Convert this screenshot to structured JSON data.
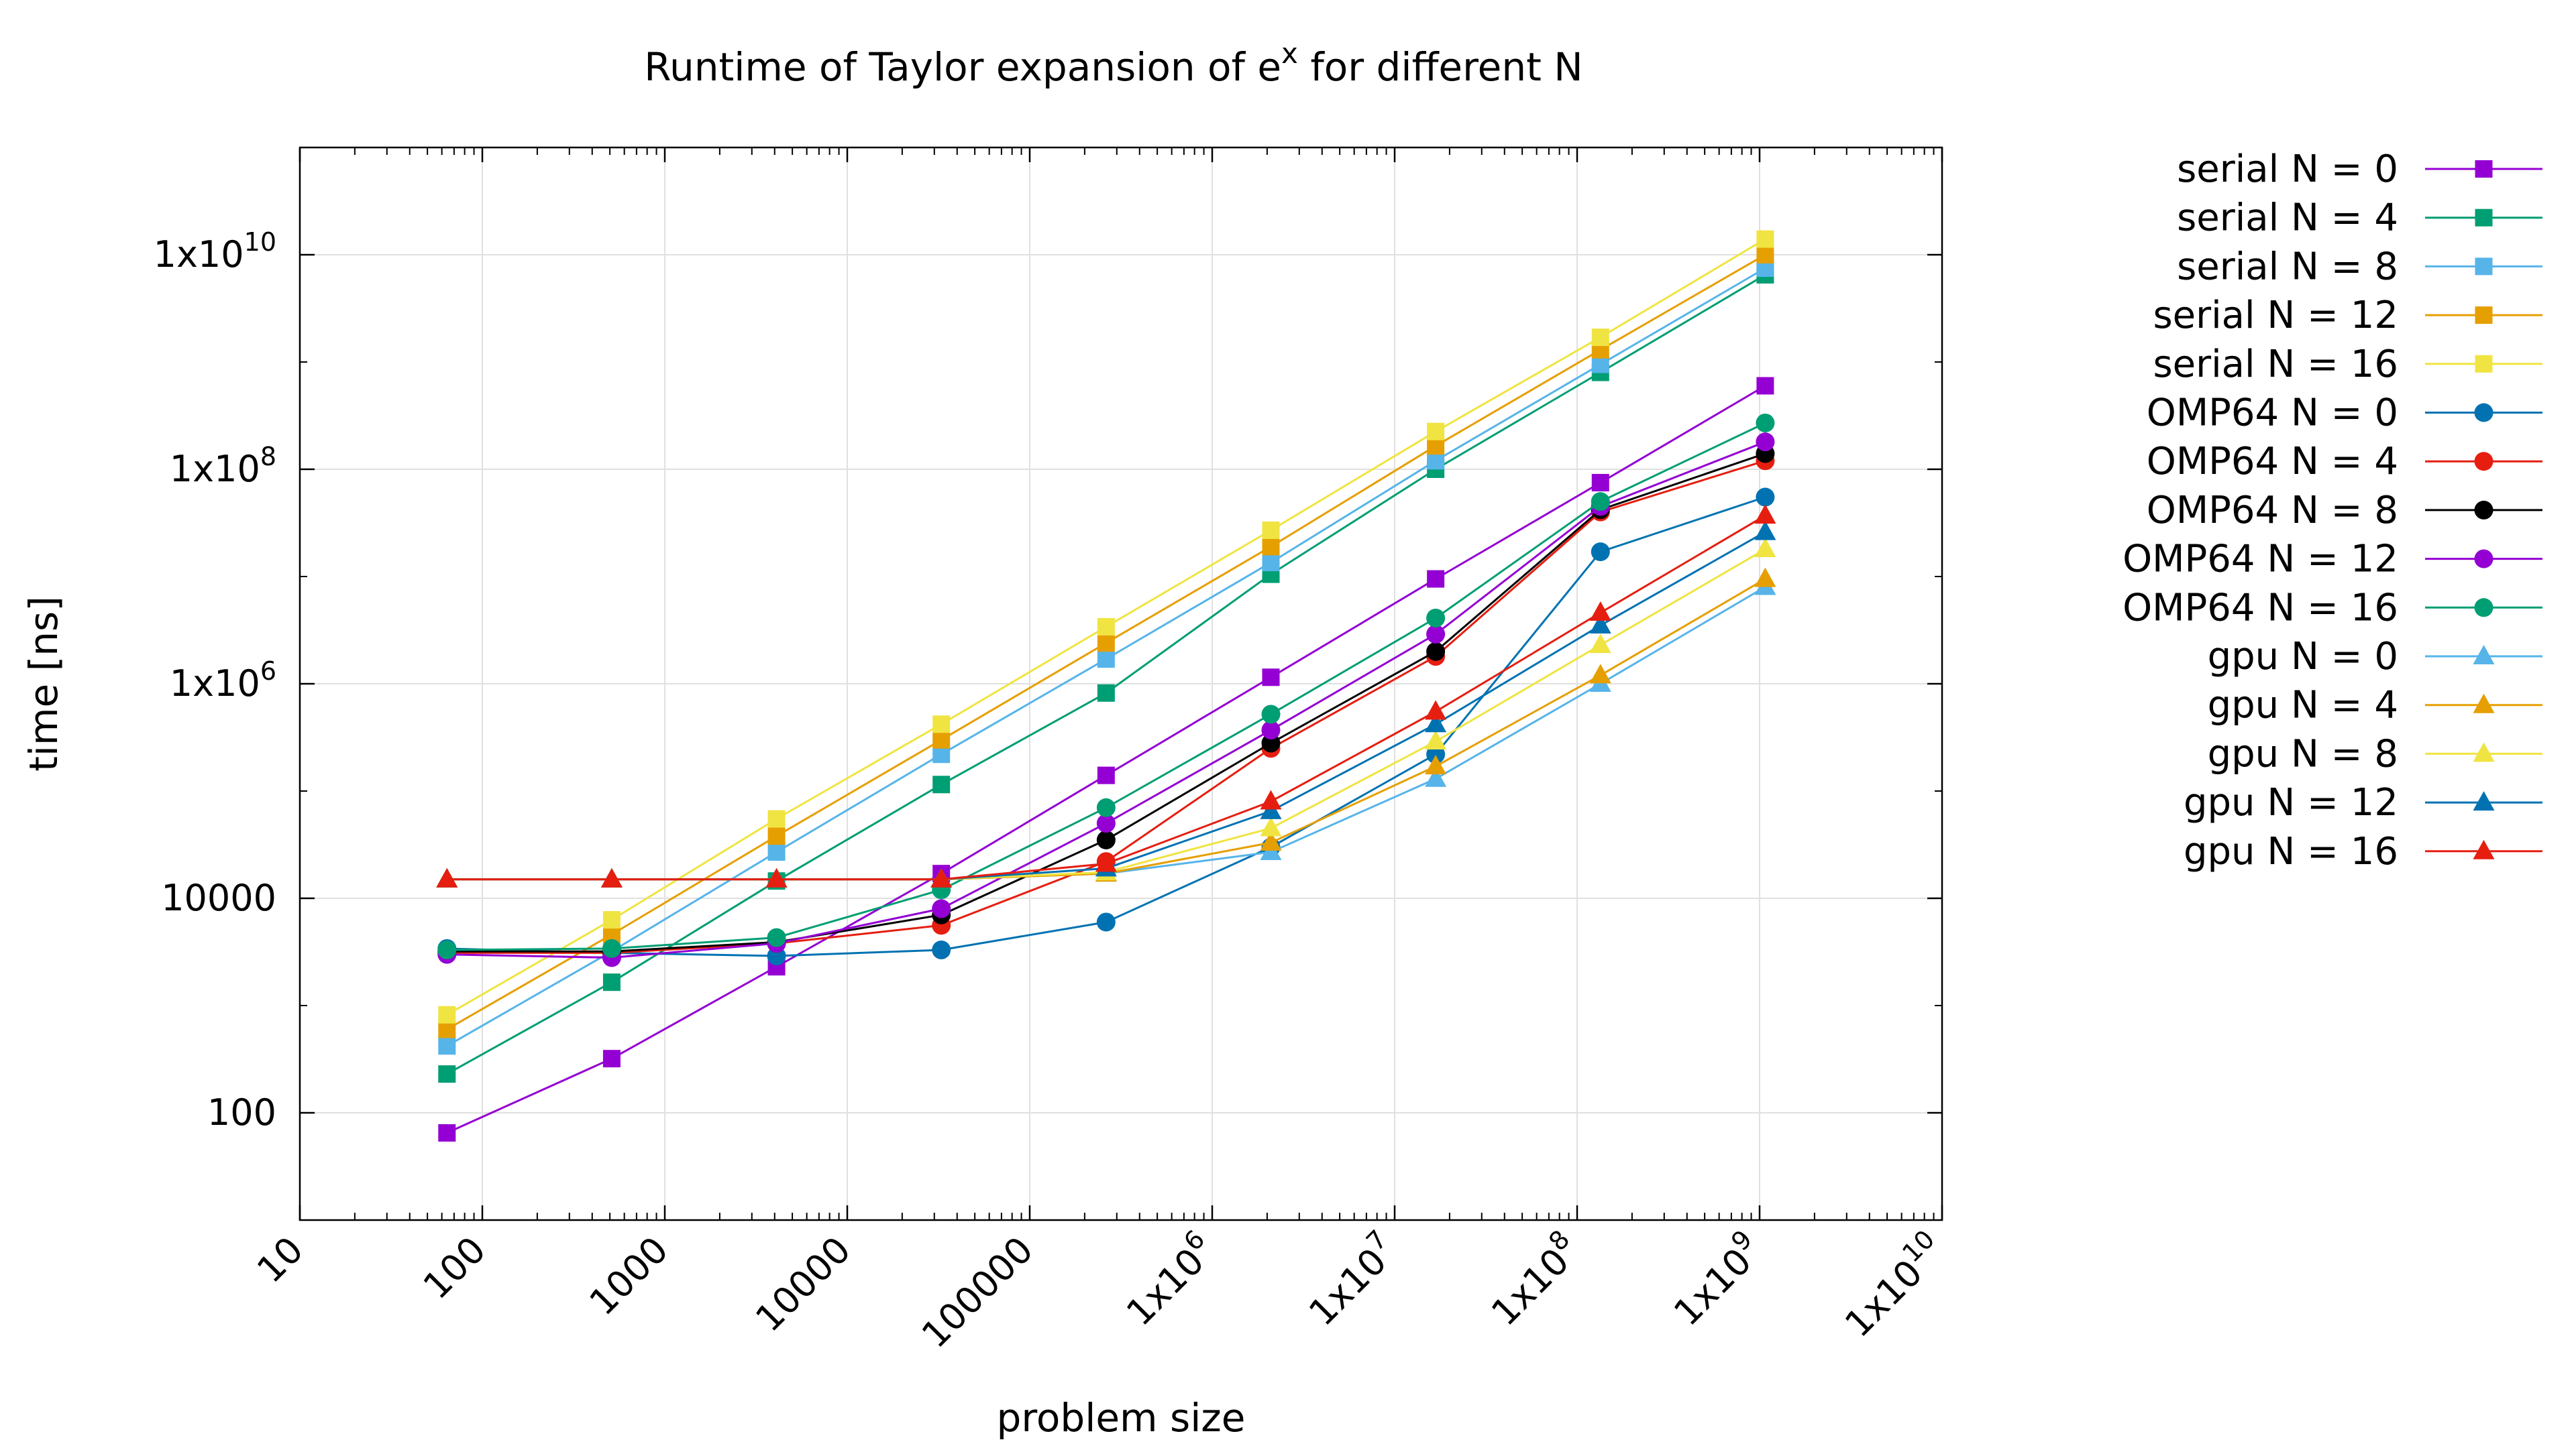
{
  "chart_data": {
    "type": "line",
    "title": "Runtime of Taylor expansion of e^x for different N",
    "title_parts": {
      "prefix": "Runtime of Taylor expansion of e",
      "sup": "x",
      "suffix": " for different N"
    },
    "xlabel": "problem size",
    "ylabel": "time [ns]",
    "x_scale": "log",
    "y_scale": "log",
    "xlim": [
      10,
      10000000000
    ],
    "ylim": [
      10,
      100000000000
    ],
    "grid": true,
    "legend_position": "outside-right",
    "x_ticks": [
      {
        "v": 10,
        "label": "10"
      },
      {
        "v": 100,
        "label": "100"
      },
      {
        "v": 1000,
        "label": "1000"
      },
      {
        "v": 10000,
        "label": "10000"
      },
      {
        "v": 100000,
        "label": "100000"
      },
      {
        "v": 1000000,
        "label": "1x10",
        "exp": "6"
      },
      {
        "v": 10000000,
        "label": "1x10",
        "exp": "7"
      },
      {
        "v": 100000000,
        "label": "1x10",
        "exp": "8"
      },
      {
        "v": 1000000000,
        "label": "1x10",
        "exp": "9"
      },
      {
        "v": 10000000000,
        "label": "1x10",
        "exp": "10"
      }
    ],
    "y_ticks": [
      {
        "v": 100,
        "label": "100"
      },
      {
        "v": 10000,
        "label": "10000"
      },
      {
        "v": 1000000,
        "label": "1x10",
        "exp": "6"
      },
      {
        "v": 100000000,
        "label": "1x10",
        "exp": "8"
      },
      {
        "v": 10000000000,
        "label": "1x10",
        "exp": "10"
      }
    ],
    "x": [
      64,
      512,
      4096,
      32768,
      262144,
      2097152,
      16777216,
      134217728,
      1073741824
    ],
    "series": [
      {
        "name": "serial N = 0",
        "color": "#9400d3",
        "marker": "square",
        "values": [
          65,
          320,
          2300,
          17000,
          140000,
          1150000,
          9500000,
          75000000,
          600000000
        ]
      },
      {
        "name": "serial N = 4",
        "color": "#009e73",
        "marker": "square",
        "values": [
          230,
          1650,
          14500,
          115000,
          820000,
          10500000,
          100000000,
          800000000,
          6500000000
        ]
      },
      {
        "name": "serial N = 8",
        "color": "#56b4e9",
        "marker": "square",
        "values": [
          420,
          3200,
          27000,
          220000,
          1700000,
          13500000,
          120000000,
          950000000,
          7500000000
        ]
      },
      {
        "name": "serial N = 12",
        "color": "#e69f00",
        "marker": "square",
        "values": [
          600,
          4600,
          38000,
          300000,
          2400000,
          19000000,
          165000000,
          1300000000,
          10000000000
        ]
      },
      {
        "name": "serial N = 16",
        "color": "#f0e442",
        "marker": "square",
        "values": [
          820,
          6300,
          55000,
          420000,
          3400000,
          27000000,
          225000000,
          1700000000,
          14000000000
        ]
      },
      {
        "name": "OMP64 N = 0",
        "color": "#0072b2",
        "marker": "circle",
        "values": [
          3400,
          3100,
          2900,
          3300,
          6000,
          30000,
          220000,
          17000000,
          55000000
        ]
      },
      {
        "name": "OMP64 N = 4",
        "color": "#e51e10",
        "marker": "circle",
        "values": [
          3100,
          3100,
          3800,
          5600,
          22000,
          250000,
          1800000,
          40000000,
          120000000
        ]
      },
      {
        "name": "OMP64 N = 8",
        "color": "#000000",
        "marker": "circle",
        "values": [
          3200,
          3200,
          3900,
          7000,
          35000,
          280000,
          2000000,
          42000000,
          140000000
        ]
      },
      {
        "name": "OMP64 N = 12",
        "color": "#9400d3",
        "marker": "circle",
        "values": [
          3000,
          2800,
          3800,
          8000,
          50000,
          370000,
          2900000,
          45000000,
          180000000
        ]
      },
      {
        "name": "OMP64 N = 16",
        "color": "#009e73",
        "marker": "circle",
        "values": [
          3300,
          3400,
          4300,
          12000,
          70000,
          520000,
          4100000,
          50000000,
          270000000
        ]
      },
      {
        "name": "gpu N = 0",
        "color": "#56b4e9",
        "marker": "triangle",
        "values": [
          15000,
          15000,
          15000,
          15000,
          17000,
          27000,
          130000,
          1000000,
          8000000
        ]
      },
      {
        "name": "gpu N = 4",
        "color": "#e69f00",
        "marker": "triangle",
        "values": [
          15000,
          15000,
          15000,
          15000,
          17000,
          33000,
          170000,
          1200000,
          9500000
        ]
      },
      {
        "name": "gpu N = 8",
        "color": "#f0e442",
        "marker": "triangle",
        "values": [
          15000,
          15000,
          15000,
          15000,
          17500,
          45000,
          290000,
          2300000,
          18000000
        ]
      },
      {
        "name": "gpu N = 12",
        "color": "#0072b2",
        "marker": "triangle",
        "values": [
          15000,
          15000,
          15000,
          15000,
          19000,
          65000,
          420000,
          3500000,
          26000000
        ]
      },
      {
        "name": "gpu N = 16",
        "color": "#e51e10",
        "marker": "triangle",
        "values": [
          15000,
          15000,
          15000,
          15000,
          21000,
          80000,
          550000,
          4600000,
          37000000
        ]
      }
    ]
  }
}
